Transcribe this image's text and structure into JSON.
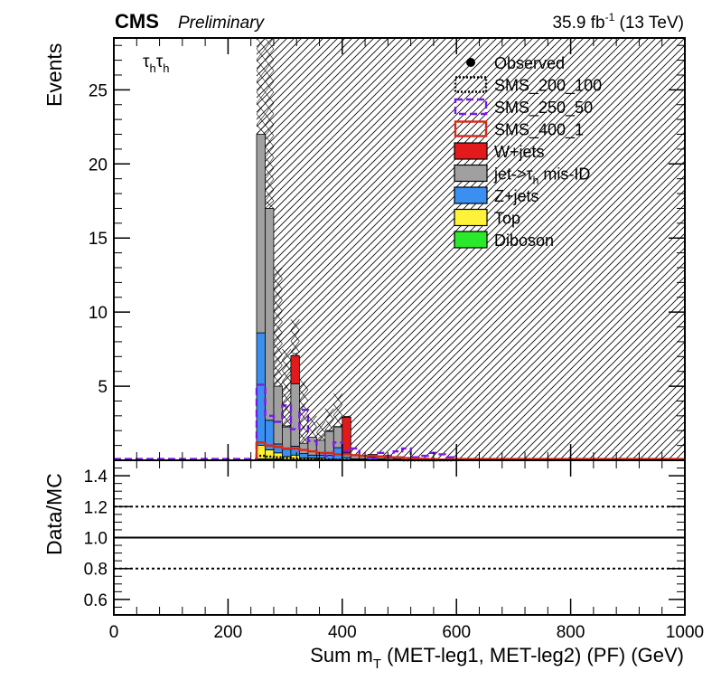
{
  "header": {
    "experiment": "CMS",
    "status": "Preliminary",
    "lumi": "35.9 fb",
    "lumi_exp": "-1",
    "energy": " (13 TeV)"
  },
  "channel_label": {
    "base": "τ",
    "sub": "h"
  },
  "legend": [
    {
      "key": "observed",
      "label": "Observed",
      "style": "marker",
      "color": "#000000"
    },
    {
      "key": "sms_200_100",
      "label": "SMS_200_100",
      "style": "dotted",
      "color": "#000000"
    },
    {
      "key": "sms_250_50",
      "label": "SMS_250_50",
      "style": "dashed",
      "color": "#7b18e6"
    },
    {
      "key": "sms_400_1",
      "label": "SMS_400_1",
      "style": "solid",
      "color": "#d42a1a"
    },
    {
      "key": "wjets",
      "label": "W+jets",
      "style": "fill",
      "color": "#e31a1c"
    },
    {
      "key": "fakes",
      "label": "jet->τ",
      "sub": "h",
      "after": " mis-ID",
      "style": "fill",
      "color": "#a0a0a0"
    },
    {
      "key": "zjets",
      "label": "Z+jets",
      "style": "fill",
      "color": "#3a8ff0"
    },
    {
      "key": "top",
      "label": "Top",
      "style": "fill",
      "color": "#fff23a"
    },
    {
      "key": "diboson",
      "label": "Diboson",
      "style": "fill",
      "color": "#2ae82a"
    }
  ],
  "chart_data": [
    {
      "type": "bar",
      "stacked": true,
      "ylabel": "Events",
      "xlim": [
        0,
        1000
      ],
      "ylim": [
        0,
        28.5
      ],
      "yticks": [
        5,
        10,
        15,
        20,
        25
      ],
      "bin_edges": [
        250,
        265,
        280,
        295,
        310,
        325,
        340,
        355,
        370,
        385,
        400,
        415,
        430,
        445,
        460,
        475,
        490,
        505,
        520,
        535,
        550,
        565,
        580,
        595
      ],
      "series": [
        {
          "name": "Diboson",
          "values": [
            0.1,
            0.1,
            0.1,
            0.05,
            0.05,
            0.05,
            0.05,
            0.05,
            0,
            0,
            0,
            0,
            0,
            0,
            0,
            0,
            0,
            0,
            0,
            0,
            0,
            0,
            0
          ],
          "color": "#2ae82a"
        },
        {
          "name": "Top",
          "values": [
            0.9,
            0.6,
            0.4,
            0.2,
            0.3,
            0.1,
            0.1,
            0.1,
            0.05,
            0.05,
            0,
            0,
            0,
            0,
            0,
            0,
            0,
            0,
            0,
            0,
            0,
            0,
            0
          ],
          "color": "#fff23a"
        },
        {
          "name": "Z+jets",
          "values": [
            7.6,
            2.0,
            0.6,
            0.5,
            0.6,
            0.3,
            0.2,
            0.2,
            0.3,
            0.8,
            0.2,
            0.1,
            0.1,
            0.2,
            0.1,
            0.05,
            0,
            0,
            0.1,
            0,
            0,
            0,
            0
          ],
          "color": "#3a8ff0"
        },
        {
          "name": "jet->τh mis-ID",
          "values": [
            13.4,
            14.3,
            3.9,
            1.5,
            4.2,
            0.7,
            1.2,
            1.0,
            1.6,
            1.4,
            0.3,
            0.2,
            0.2,
            0.2,
            0.2,
            0.1,
            0.1,
            0.05,
            0.1,
            0.05,
            0.1,
            0.05,
            0.1
          ],
          "color": "#a0a0a0"
        },
        {
          "name": "W+jets",
          "values": [
            0,
            0,
            0,
            0,
            1.9,
            0,
            0,
            0,
            0,
            0,
            2.4,
            0,
            0,
            0,
            0,
            0,
            0,
            0,
            0,
            0,
            0,
            0,
            0
          ],
          "color": "#e31a1c"
        }
      ],
      "signals": [
        {
          "name": "SMS_200_100",
          "values": [
            0.3,
            0.25,
            0.2,
            0.15,
            0.1,
            0.1,
            0.08,
            0.06,
            0.05,
            0.04,
            0.03,
            0.03,
            0.02,
            0.02,
            0.02,
            0.01,
            0.01,
            0,
            0,
            0,
            0,
            0,
            0
          ]
        },
        {
          "name": "SMS_250_50",
          "values": [
            5.1,
            3.0,
            2.6,
            3.7,
            2.1,
            3.4,
            1.3,
            0.5,
            0.3,
            1.2,
            0.6,
            0.8,
            0.3,
            0.1,
            0.5,
            0.3,
            0.6,
            0.8,
            0.2,
            0.3,
            0.5,
            0.4,
            0.2
          ]
        },
        {
          "name": "SMS_400_1",
          "values": [
            1.2,
            1.0,
            0.9,
            0.8,
            0.8,
            0.7,
            0.6,
            0.5,
            0.5,
            0.4,
            0.4,
            0.35,
            0.3,
            0.3,
            0.25,
            0.2,
            0.2,
            0.15,
            0.1,
            0.1,
            0.08,
            0.05,
            0.05
          ]
        }
      ],
      "uncertainty_top": [
        28.5,
        28.5,
        13.0,
        7.5,
        9.5,
        5.5,
        3.0,
        2.6,
        3.5,
        4.5,
        3.0
      ]
    },
    {
      "type": "line",
      "ylabel": "Data/MC",
      "xlabel": "Sum m",
      "xlabel_sub": "T",
      "xlabel_after": " (MET-leg1, MET-leg2) (PF) (GeV)",
      "xlim": [
        0,
        1000
      ],
      "ylim": [
        0.5,
        1.5
      ],
      "yticks": [
        "0.6",
        "0.8",
        "1.0",
        "1.2",
        "1.4"
      ],
      "xticks": [
        "0",
        "200",
        "400",
        "600",
        "800",
        "1000"
      ],
      "reference_lines": [
        {
          "y": 1.0,
          "style": "solid"
        },
        {
          "y": 0.8,
          "style": "dotted"
        },
        {
          "y": 1.2,
          "style": "dotted"
        }
      ]
    }
  ]
}
